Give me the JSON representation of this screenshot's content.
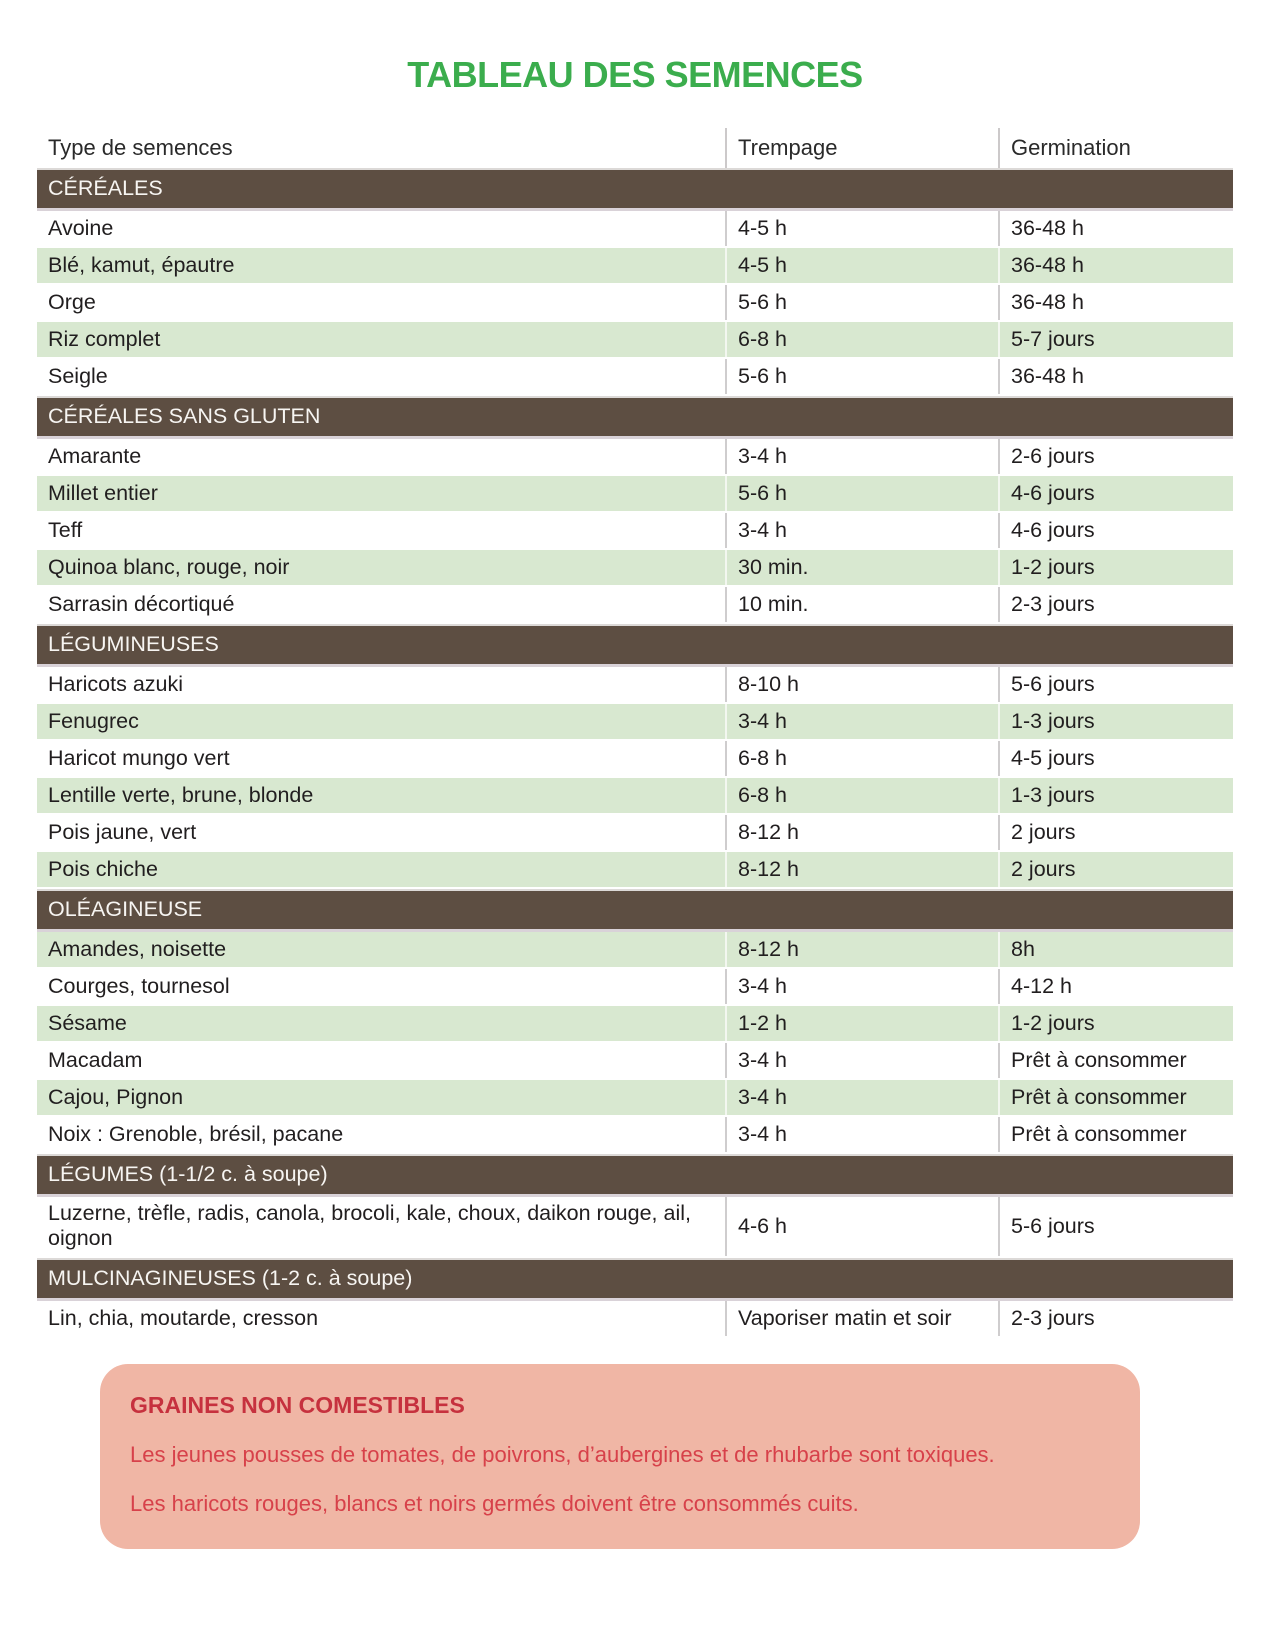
{
  "page": {
    "title": "TABLEAU DES SEMENCES"
  },
  "table": {
    "columns": [
      "Type de semences",
      "Trempage",
      "Germination"
    ],
    "sections": [
      {
        "label": "CÉRÉALES",
        "rows": [
          {
            "name": "Avoine",
            "trempage": "4-5 h",
            "germination": "36-48 h"
          },
          {
            "name": "Blé, kamut, épautre",
            "trempage": "4-5 h",
            "germination": "36-48 h"
          },
          {
            "name": "Orge",
            "trempage": "5-6 h",
            "germination": "36-48 h"
          },
          {
            "name": "Riz complet",
            "trempage": "6-8 h",
            "germination": "5-7 jours"
          },
          {
            "name": "Seigle",
            "trempage": "5-6 h",
            "germination": "36-48 h"
          }
        ]
      },
      {
        "label": "CÉRÉALES SANS GLUTEN",
        "rows": [
          {
            "name": "Amarante",
            "trempage": "3-4 h",
            "germination": "2-6 jours"
          },
          {
            "name": "Millet entier",
            "trempage": "5-6 h",
            "germination": "4-6 jours"
          },
          {
            "name": "Teff",
            "trempage": "3-4 h",
            "germination": "4-6 jours"
          },
          {
            "name": "Quinoa blanc, rouge, noir",
            "trempage": "30 min.",
            "germination": "1-2 jours"
          },
          {
            "name": "Sarrasin décortiqué",
            "trempage": "10 min.",
            "germination": "2-3 jours"
          }
        ]
      },
      {
        "label": "LÉGUMINEUSES",
        "rows": [
          {
            "name": "Haricots azuki",
            "trempage": "8-10 h",
            "germination": "5-6 jours"
          },
          {
            "name": "Fenugrec",
            "trempage": "3-4 h",
            "germination": "1-3 jours"
          },
          {
            "name": "Haricot mungo vert",
            "trempage": "6-8 h",
            "germination": "4-5 jours"
          },
          {
            "name": "Lentille verte, brune, blonde",
            "trempage": "6-8 h",
            "germination": "1-3 jours"
          },
          {
            "name": "Pois jaune, vert",
            "trempage": "8-12 h",
            "germination": "2 jours"
          },
          {
            "name": "Pois chiche",
            "trempage": "8-12 h",
            "germination": "2 jours"
          }
        ]
      },
      {
        "label": "OLÉAGINEUSE",
        "rows": [
          {
            "name": "Amandes, noisette",
            "trempage": "8-12 h",
            "germination": "8h"
          },
          {
            "name": "Courges, tournesol",
            "trempage": "3-4 h",
            "germination": "4-12 h"
          },
          {
            "name": "Sésame",
            "trempage": "1-2 h",
            "germination": "1-2 jours"
          },
          {
            "name": "Macadam",
            "trempage": "3-4 h",
            "germination": "Prêt à consommer"
          },
          {
            "name": "Cajou, Pignon",
            "trempage": "3-4 h",
            "germination": "Prêt à consommer"
          },
          {
            "name": "Noix : Grenoble, brésil, pacane",
            "trempage": "3-4 h",
            "germination": "Prêt à consommer"
          }
        ]
      },
      {
        "label": "LÉGUMES (1-1/2 c. à soupe)",
        "rows": [
          {
            "name": "Luzerne, trèfle, radis, canola, brocoli, kale, choux, daikon rouge, ail, oignon",
            "trempage": "4-6 h",
            "germination": "5-6 jours"
          }
        ]
      },
      {
        "label": "MULCINAGINEUSES (1-2 c. à soupe)",
        "rows": [
          {
            "name": "Lin, chia, moutarde, cresson",
            "trempage": "Vaporiser matin et soir",
            "germination": "2-3 jours"
          }
        ]
      }
    ]
  },
  "warning": {
    "title": "GRAINES NON COMESTIBLES",
    "lines": [
      "Les jeunes pousses de tomates, de poivrons, d’aubergines et de rhubarbe sont toxiques.",
      "Les haricots rouges, blancs et noirs germés doivent être consommés cuits."
    ]
  },
  "colors": {
    "title_green": "#3bad4d",
    "section_brown": "#5d4e42",
    "row_green": "#d8e8d0",
    "warning_bg": "#f0b6a5",
    "warning_red": "#d7414a",
    "warning_red_dark": "#c6313e"
  }
}
